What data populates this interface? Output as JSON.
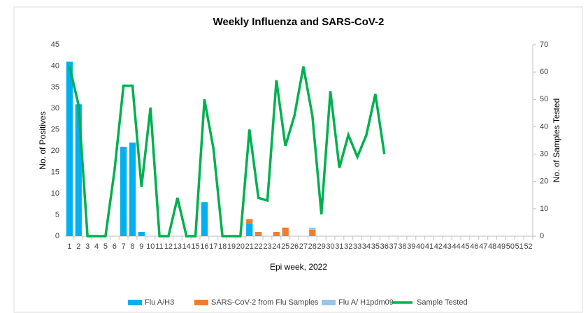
{
  "chart_data": {
    "type": "bar-line",
    "title": "Weekly Influenza and SARS-CoV-2",
    "x_label": "Epi week, 2022",
    "y_label": "No. of Positives",
    "y2_label": "No. of Samples Tested",
    "categories": [
      1,
      2,
      3,
      4,
      5,
      6,
      7,
      8,
      9,
      10,
      11,
      12,
      13,
      14,
      15,
      16,
      17,
      18,
      19,
      20,
      21,
      22,
      23,
      24,
      25,
      26,
      27,
      28,
      29,
      30,
      31,
      32,
      33,
      34,
      35,
      36,
      37,
      38,
      39,
      40,
      41,
      42,
      43,
      44,
      45,
      46,
      47,
      48,
      49,
      50,
      51,
      52
    ],
    "ylim": [
      0,
      45
    ],
    "yticks": [
      0,
      5,
      10,
      15,
      20,
      25,
      30,
      35,
      40,
      45
    ],
    "y2lim": [
      0,
      70
    ],
    "y2ticks": [
      0,
      10,
      20,
      30,
      40,
      50,
      60,
      70
    ],
    "series": [
      {
        "name": "Flu A/H3",
        "type": "bar",
        "color": "#00b0f0",
        "values": [
          41,
          31,
          0,
          0,
          0,
          0,
          21,
          22,
          1,
          0,
          0,
          0,
          0,
          0,
          0,
          8,
          0,
          0,
          0,
          0,
          3,
          0,
          0,
          0,
          0,
          0,
          0,
          0,
          0,
          0,
          0,
          0,
          0,
          0,
          0,
          0,
          0,
          0,
          0,
          0,
          0,
          0,
          0,
          0,
          0,
          0,
          0,
          0,
          0,
          0,
          0,
          0
        ]
      },
      {
        "name": "SARS-CoV-2 from Flu Samples",
        "type": "bar",
        "color": "#ed7d31",
        "values": [
          0,
          0,
          0,
          0,
          0,
          0,
          0,
          0,
          0,
          0,
          0,
          0,
          0,
          0,
          0,
          0,
          0,
          0,
          0,
          0,
          1,
          1,
          0,
          1,
          2,
          0,
          0,
          1.5,
          0,
          0,
          0,
          0,
          0,
          0,
          0,
          0,
          0,
          0,
          0,
          0,
          0,
          0,
          0,
          0,
          0,
          0,
          0,
          0,
          0,
          0,
          0,
          0
        ]
      },
      {
        "name": "Flu A/ H1pdm09",
        "type": "bar",
        "color": "#9dc3e6",
        "values": [
          0,
          0,
          0,
          0,
          0,
          0,
          0,
          0,
          0,
          0,
          0,
          0,
          0,
          0,
          0,
          0,
          0,
          0,
          0,
          0,
          0,
          0,
          0,
          0,
          0,
          0,
          0,
          0.5,
          0,
          0,
          0,
          0,
          0,
          0,
          0,
          0,
          0,
          0,
          0,
          0,
          0,
          0,
          0,
          0,
          0,
          0,
          0,
          0,
          0,
          0,
          0,
          0
        ]
      },
      {
        "name": "Sample Tested",
        "type": "line",
        "axis": "y2",
        "color": "#00b050",
        "values": [
          62,
          48,
          0,
          0,
          0,
          24,
          55,
          55,
          18,
          47,
          0,
          0,
          14,
          0,
          0,
          50,
          32,
          0,
          0,
          0,
          39,
          14,
          13,
          57,
          33,
          44,
          62,
          44,
          8,
          53,
          25,
          37,
          29,
          37,
          52,
          30,
          null,
          null,
          null,
          null,
          null,
          null,
          null,
          null,
          null,
          null,
          null,
          null,
          null,
          null,
          null,
          null
        ]
      }
    ]
  }
}
